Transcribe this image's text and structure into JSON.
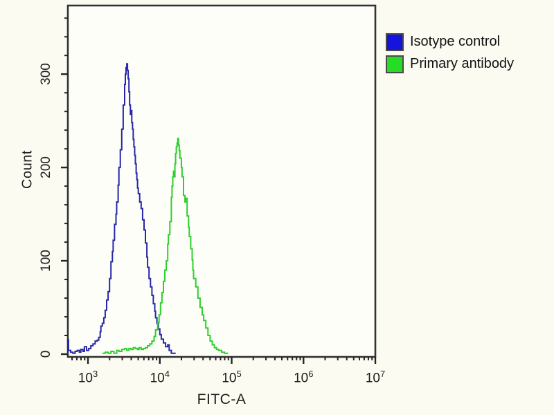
{
  "page": {
    "background": "#fbfbf2"
  },
  "axes": {
    "y_title": "Count",
    "x_title": "FITC-A"
  },
  "legend": {
    "items": [
      {
        "label": "Isotype control",
        "color": "#1414dc"
      },
      {
        "label": "Primary antibody",
        "color": "#24dd24"
      }
    ]
  },
  "chart_data": {
    "type": "line",
    "subtype": "flow-cytometry-step-histogram",
    "xlabel": "FITC-A",
    "ylabel": "Count",
    "x_scale": "log10",
    "xlim_log10": [
      2.72,
      7
    ],
    "ylim": [
      0,
      372
    ],
    "x_major_ticks": [
      {
        "base": "10",
        "exp": "3"
      },
      {
        "base": "10",
        "exp": "4"
      },
      {
        "base": "10",
        "exp": "5"
      },
      {
        "base": "10",
        "exp": "6"
      },
      {
        "base": "10",
        "exp": "7"
      }
    ],
    "y_major_ticks": [
      {
        "value": 0,
        "label": "0"
      },
      {
        "value": 100,
        "label": "100"
      },
      {
        "value": 200,
        "label": "200"
      },
      {
        "value": 300,
        "label": "300"
      }
    ],
    "y_minor_step": 20,
    "grid": false,
    "legend_position": "top-right-outside",
    "series": [
      {
        "name": "Isotype control",
        "color": "#2626a8",
        "points_log10x_count": [
          [
            2.72,
            0
          ],
          [
            2.72,
            13
          ],
          [
            2.73,
            16
          ],
          [
            2.73,
            4
          ],
          [
            2.76,
            2
          ],
          [
            2.79,
            1
          ],
          [
            2.82,
            3
          ],
          [
            2.85,
            4
          ],
          [
            2.88,
            2
          ],
          [
            2.9,
            5
          ],
          [
            2.93,
            3
          ],
          [
            2.95,
            8
          ],
          [
            2.98,
            4
          ],
          [
            3.01,
            6
          ],
          [
            3.04,
            9
          ],
          [
            3.07,
            11
          ],
          [
            3.1,
            14
          ],
          [
            3.13,
            15
          ],
          [
            3.15,
            18
          ],
          [
            3.17,
            24
          ],
          [
            3.18,
            30
          ],
          [
            3.2,
            33
          ],
          [
            3.22,
            39
          ],
          [
            3.24,
            47
          ],
          [
            3.26,
            58
          ],
          [
            3.28,
            67
          ],
          [
            3.3,
            81
          ],
          [
            3.32,
            99
          ],
          [
            3.34,
            110
          ],
          [
            3.35,
            122
          ],
          [
            3.37,
            139
          ],
          [
            3.39,
            150
          ],
          [
            3.4,
            163
          ],
          [
            3.42,
            181
          ],
          [
            3.43,
            200
          ],
          [
            3.45,
            219
          ],
          [
            3.47,
            241
          ],
          [
            3.49,
            267
          ],
          [
            3.51,
            289
          ],
          [
            3.52,
            300
          ],
          [
            3.53,
            307
          ],
          [
            3.54,
            311
          ],
          [
            3.55,
            304
          ],
          [
            3.56,
            295
          ],
          [
            3.57,
            281
          ],
          [
            3.58,
            267
          ],
          [
            3.59,
            257
          ],
          [
            3.6,
            261
          ],
          [
            3.61,
            248
          ],
          [
            3.62,
            241
          ],
          [
            3.63,
            230
          ],
          [
            3.64,
            222
          ],
          [
            3.65,
            213
          ],
          [
            3.66,
            204
          ],
          [
            3.67,
            194
          ],
          [
            3.68,
            187
          ],
          [
            3.69,
            178
          ],
          [
            3.7,
            172
          ],
          [
            3.72,
            163
          ],
          [
            3.74,
            156
          ],
          [
            3.76,
            144
          ],
          [
            3.78,
            133
          ],
          [
            3.8,
            119
          ],
          [
            3.82,
            104
          ],
          [
            3.83,
            93
          ],
          [
            3.85,
            81
          ],
          [
            3.87,
            72
          ],
          [
            3.89,
            63
          ],
          [
            3.91,
            54
          ],
          [
            3.93,
            46
          ],
          [
            3.94,
            39
          ],
          [
            3.96,
            33
          ],
          [
            3.98,
            27
          ],
          [
            4.0,
            21
          ],
          [
            4.02,
            16
          ],
          [
            4.05,
            12
          ],
          [
            4.08,
            8
          ],
          [
            4.11,
            10
          ],
          [
            4.13,
            4
          ],
          [
            4.16,
            1
          ],
          [
            4.21,
            0
          ]
        ]
      },
      {
        "name": "Primary antibody",
        "color": "#2dce2d",
        "points_log10x_count": [
          [
            3.2,
            1
          ],
          [
            3.24,
            2
          ],
          [
            3.28,
            1
          ],
          [
            3.32,
            3
          ],
          [
            3.36,
            1
          ],
          [
            3.4,
            4
          ],
          [
            3.43,
            3
          ],
          [
            3.47,
            5
          ],
          [
            3.51,
            6
          ],
          [
            3.54,
            4
          ],
          [
            3.57,
            6
          ],
          [
            3.6,
            5
          ],
          [
            3.63,
            7
          ],
          [
            3.66,
            6
          ],
          [
            3.69,
            5
          ],
          [
            3.71,
            7
          ],
          [
            3.74,
            5
          ],
          [
            3.77,
            6
          ],
          [
            3.8,
            7
          ],
          [
            3.83,
            9
          ],
          [
            3.86,
            11
          ],
          [
            3.89,
            14
          ],
          [
            3.92,
            19
          ],
          [
            3.94,
            26
          ],
          [
            3.97,
            34
          ],
          [
            3.99,
            42
          ],
          [
            4.01,
            55
          ],
          [
            4.03,
            66
          ],
          [
            4.05,
            78
          ],
          [
            4.07,
            90
          ],
          [
            4.09,
            100
          ],
          [
            4.11,
            118
          ],
          [
            4.12,
            128
          ],
          [
            4.14,
            142
          ],
          [
            4.16,
            168
          ],
          [
            4.17,
            180
          ],
          [
            4.18,
            190
          ],
          [
            4.19,
            196
          ],
          [
            4.2,
            190
          ],
          [
            4.21,
            204
          ],
          [
            4.22,
            215
          ],
          [
            4.23,
            222
          ],
          [
            4.24,
            226
          ],
          [
            4.25,
            231
          ],
          [
            4.26,
            224
          ],
          [
            4.27,
            218
          ],
          [
            4.28,
            210
          ],
          [
            4.3,
            200
          ],
          [
            4.31,
            190
          ],
          [
            4.33,
            170
          ],
          [
            4.35,
            163
          ],
          [
            4.36,
            167
          ],
          [
            4.38,
            148
          ],
          [
            4.4,
            136
          ],
          [
            4.41,
            126
          ],
          [
            4.43,
            113
          ],
          [
            4.45,
            101
          ],
          [
            4.46,
            90
          ],
          [
            4.47,
            81
          ],
          [
            4.5,
            72
          ],
          [
            4.53,
            60
          ],
          [
            4.56,
            50
          ],
          [
            4.59,
            42
          ],
          [
            4.61,
            36
          ],
          [
            4.64,
            28
          ],
          [
            4.67,
            20
          ],
          [
            4.7,
            14
          ],
          [
            4.73,
            10
          ],
          [
            4.76,
            7
          ],
          [
            4.79,
            5
          ],
          [
            4.82,
            4
          ],
          [
            4.86,
            2
          ],
          [
            4.9,
            1
          ],
          [
            4.94,
            0
          ]
        ]
      }
    ]
  }
}
